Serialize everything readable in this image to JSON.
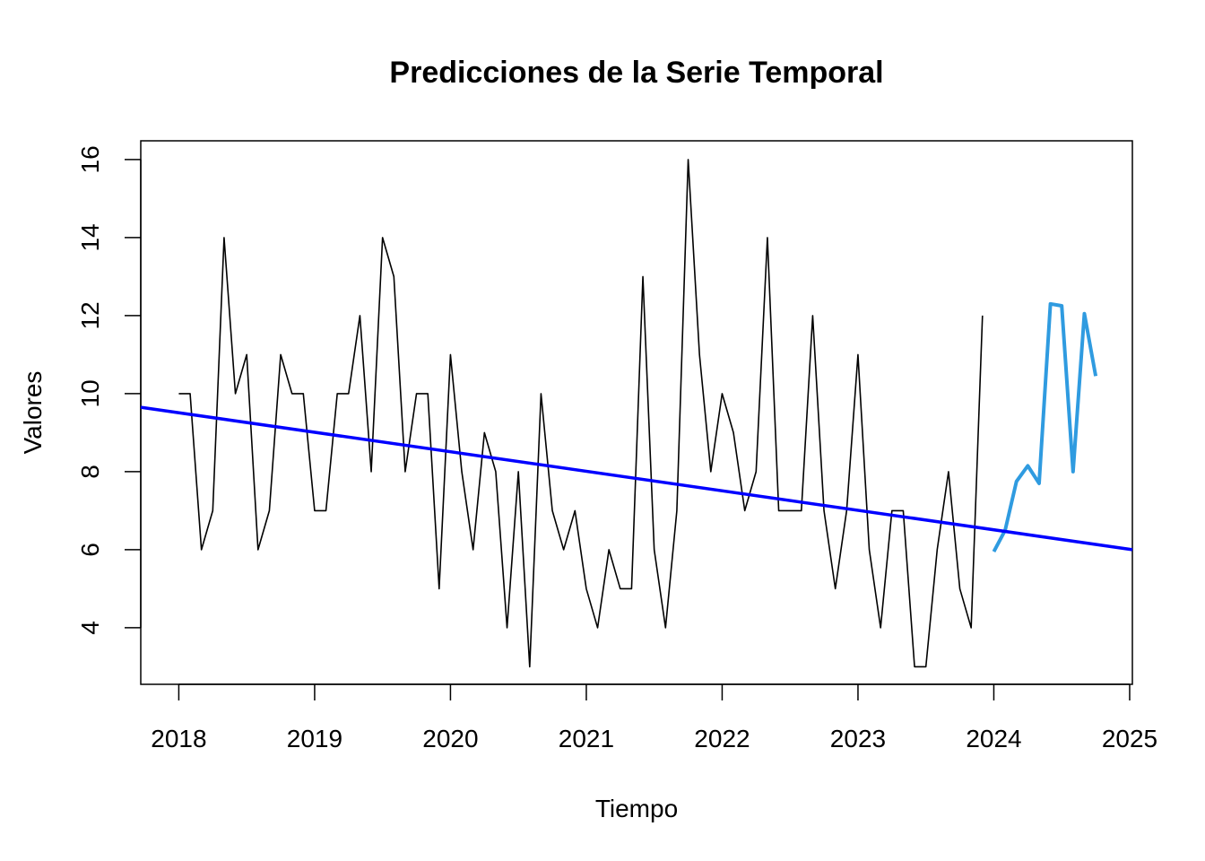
{
  "chart_data": {
    "type": "line",
    "title": "Predicciones de la Serie Temporal",
    "xlabel": "Tiempo",
    "ylabel": "Valores",
    "xlim": [
      2017.72,
      2025.02
    ],
    "ylim": [
      2.55,
      16.48
    ],
    "x_ticks": [
      2018,
      2019,
      2020,
      2021,
      2022,
      2023,
      2024,
      2025
    ],
    "y_ticks": [
      4,
      6,
      8,
      10,
      12,
      14,
      16
    ],
    "grid": false,
    "legend": "none",
    "series": [
      {
        "start": 2018.0,
        "step": 0.08333,
        "color": "#000000",
        "values": [
          10,
          10,
          6,
          7,
          14,
          10,
          11,
          6,
          7,
          11,
          10,
          10,
          7,
          7,
          10,
          10,
          12,
          8,
          14,
          13,
          8,
          10,
          10,
          5,
          11,
          8,
          6,
          9,
          8,
          4,
          8,
          3,
          10,
          7,
          6,
          7,
          5,
          4,
          6,
          5,
          5,
          13,
          6,
          4,
          7,
          16,
          11,
          8,
          10,
          9,
          7,
          8,
          14,
          7,
          7,
          7,
          12,
          7,
          5,
          7,
          11,
          6,
          4,
          7,
          7,
          3,
          3,
          6,
          8,
          5,
          4,
          12
        ]
      },
      {
        "start": 2024.0,
        "step": 0.08333,
        "color": "#2f9be0",
        "values": [
          5.95,
          6.5,
          7.75,
          8.15,
          7.7,
          12.3,
          12.25,
          8.0,
          12.05,
          10.45
        ]
      },
      {
        "x": [
          2017.72,
          2025.02
        ],
        "color": "#0000ff",
        "values": [
          9.65,
          6.0
        ]
      }
    ]
  }
}
